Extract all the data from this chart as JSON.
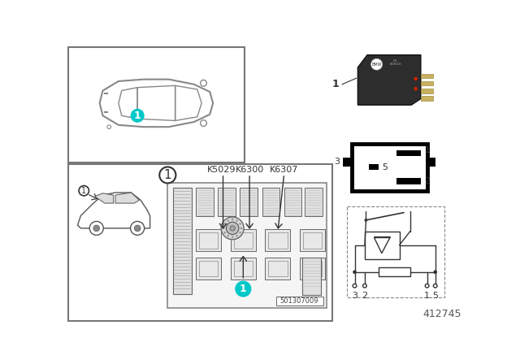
{
  "page_bg": "#ffffff",
  "title_number": "412745",
  "teal_color": "#00c8c8",
  "gray_line": "#888888",
  "dark_line": "#333333",
  "relay_labels": [
    "K5029",
    "K6300",
    "K6307"
  ],
  "fuse_box_ref": "501307009",
  "light_gray": "#dddddd",
  "med_gray": "#aaaaaa",
  "panel_border": "#777777"
}
